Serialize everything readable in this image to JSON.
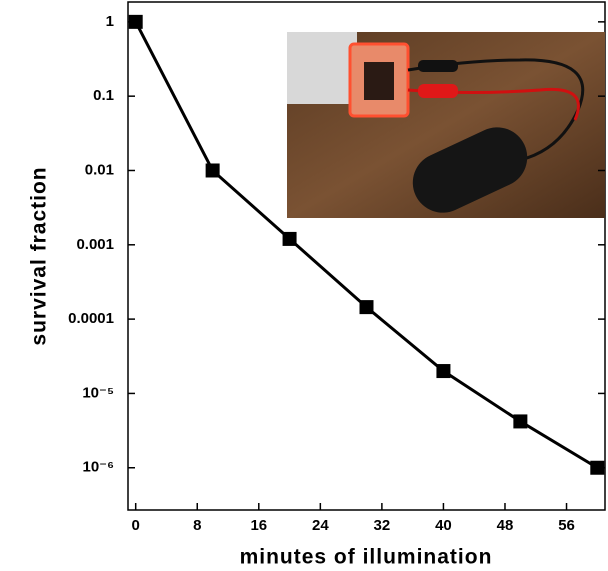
{
  "chart_data": {
    "type": "line",
    "x": [
      0,
      10,
      20,
      30,
      40,
      50,
      60
    ],
    "values": [
      1,
      0.01,
      0.0012,
      0.000145,
      2e-05,
      4.2e-06,
      1e-06
    ],
    "color": "#000000",
    "y_label": "survival fraction",
    "x_label": "minutes of illumination",
    "xlim": [
      -1,
      61
    ],
    "xticks": [
      0,
      8,
      16,
      24,
      32,
      40,
      48,
      56
    ],
    "ylim": [
      2.7e-07,
      1.85
    ],
    "log_y": true,
    "yticks": [
      1,
      0.1,
      0.01,
      0.001,
      0.0001,
      {
        "value": 1e-05,
        "label": "10⁻⁵"
      },
      {
        "value": 1e-06,
        "label": "10⁻⁶"
      }
    ],
    "grid": false
  }
}
